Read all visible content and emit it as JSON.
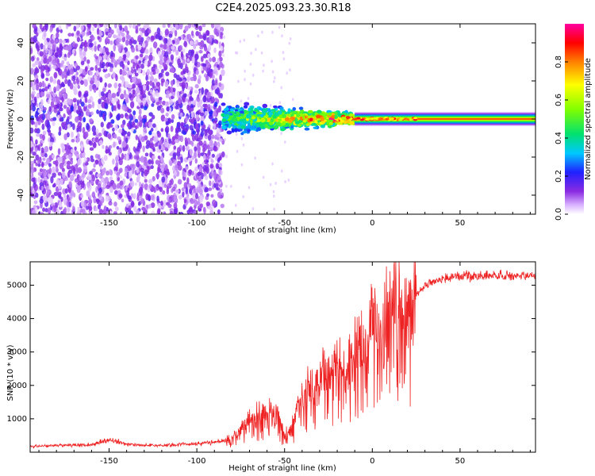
{
  "figure_title": "C2E4.2025.093.23.30.R18",
  "chart_data": [
    {
      "type": "heatmap",
      "title": "",
      "xlabel": "Height of straight line (km)",
      "ylabel": "Frequency (Hz)",
      "xlim": [
        -195,
        93
      ],
      "ylim": [
        -50,
        50
      ],
      "xticks": [
        -150,
        -100,
        -50,
        0,
        50
      ],
      "yticks": [
        -40,
        -20,
        0,
        20,
        40
      ],
      "grid": false,
      "colorbar": {
        "label": "Normalized spectral amplitude",
        "range": [
          0.0,
          1.0
        ],
        "ticks": [
          "0.0",
          "0.2",
          "0.4",
          "0.6",
          "0.8"
        ],
        "colormap": [
          "#ffffff",
          "#d8b0ff",
          "#8a2be2",
          "#2020ff",
          "#00c8ff",
          "#00e070",
          "#80ff00",
          "#ffff00",
          "#ff8000",
          "#ff0000",
          "#ff00a0"
        ]
      },
      "regions": [
        {
          "name": "noise",
          "x": [
            -195,
            -85
          ],
          "freq_span": [
            -50,
            50
          ],
          "amplitude": 0.12
        },
        {
          "name": "onset",
          "x": [
            -85,
            -10
          ],
          "freq_center": 0,
          "freq_halfwidth": [
            8,
            3
          ],
          "amplitude": [
            0.35,
            0.75
          ]
        },
        {
          "name": "steady",
          "x": [
            -10,
            93
          ],
          "freq_center": 0,
          "freq_halfwidth": 3,
          "amplitude": 0.55
        }
      ]
    },
    {
      "type": "line",
      "title": "",
      "xlabel": "Height of straight line (km)",
      "ylabel": "SNR (10 * v/v)",
      "xlim": [
        -195,
        93
      ],
      "ylim": [
        0,
        5700
      ],
      "xticks": [
        -150,
        -100,
        -50,
        0,
        50
      ],
      "yticks": [
        1000,
        2000,
        3000,
        4000,
        5000
      ],
      "line_color": "#ee2222",
      "grid": false,
      "series": [
        {
          "name": "SNR",
          "x": [
            -195,
            -180,
            -160,
            -150,
            -140,
            -120,
            -100,
            -90,
            -80,
            -70,
            -60,
            -55,
            -50,
            -45,
            -40,
            -30,
            -20,
            -10,
            -5,
            0,
            5,
            10,
            15,
            20,
            25,
            30,
            40,
            50,
            60,
            70,
            80,
            93
          ],
          "values": [
            180,
            200,
            220,
            380,
            230,
            200,
            260,
            300,
            400,
            1000,
            1200,
            1300,
            500,
            800,
            1800,
            2200,
            2500,
            3000,
            3200,
            3900,
            3500,
            4400,
            4500,
            4300,
            4700,
            5000,
            5200,
            5300,
            5250,
            5300,
            5250,
            5300
          ]
        }
      ]
    }
  ]
}
